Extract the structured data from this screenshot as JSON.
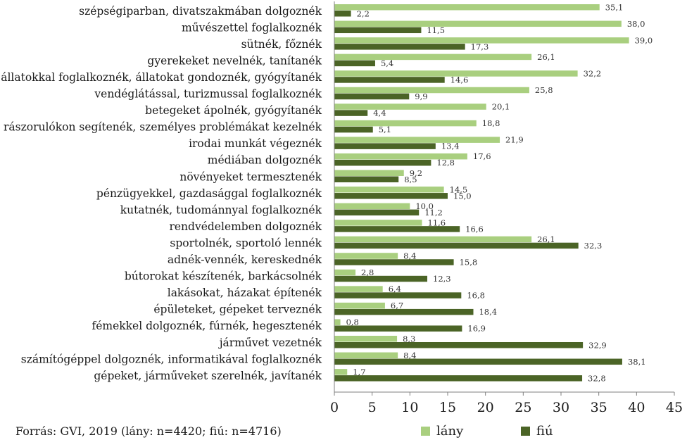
{
  "chart_data": {
    "type": "bar",
    "orientation": "horizontal",
    "categories": [
      "szépségiparban, divatszakmában dolgoznék",
      "művészettel foglalkoznék",
      "sütnék, főznék",
      "gyerekeket nevelnék, tanítanék",
      "állatokkal foglalkoznék, állatokat gondoznék, gyógyítanék",
      "vendéglátással, turizmussal foglalkoznék",
      "betegeket ápolnék, gyógyítanék",
      "rászorulókon segítenék, személyes problémákat kezelnék",
      "irodai munkát végeznék",
      "médiában dolgoznék",
      "növényeket termesztenék",
      "pénzügyekkel, gazdasággal foglalkoznék",
      "kutatnék, tudománnyal foglalkoznék",
      "rendvédelemben dolgoznék",
      "sportolnék, sportoló lennék",
      "adnék-vennék, kereskednék",
      "bútorokat készítenék, barkácsolnék",
      "lakásokat, házakat építenék",
      "épületeket, gépeket terveznék",
      "fémekkel dolgoznék, fúrnék, hegesztenék",
      "járművet vezetnék",
      "számítógéppel dolgoznék, informatikával foglalkoznék",
      "gépeket, járműveket szerelnék, javítanék"
    ],
    "series": [
      {
        "name": "lány",
        "color": "#a9cf7f",
        "values": [
          35.1,
          38.0,
          39.0,
          26.1,
          32.2,
          25.8,
          20.1,
          18.8,
          21.9,
          17.6,
          9.2,
          14.5,
          10.0,
          11.6,
          26.1,
          8.4,
          2.8,
          6.4,
          6.7,
          0.8,
          8.3,
          8.4,
          1.7
        ],
        "labels": [
          "35,1",
          "38,0",
          "39,0",
          "26,1",
          "32,2",
          "25,8",
          "20,1",
          "18,8",
          "21,9",
          "17,6",
          "9,2",
          "14,5",
          "10,0",
          "11,6",
          "26,1",
          "8,4",
          "2,8",
          "6,4",
          "6,7",
          "0,8",
          "8,3",
          "8,4",
          "1,7"
        ]
      },
      {
        "name": "fiú",
        "color": "#4b6426",
        "values": [
          2.2,
          11.5,
          17.3,
          5.4,
          14.6,
          9.9,
          4.4,
          5.1,
          13.4,
          12.8,
          8.5,
          15.0,
          11.2,
          16.6,
          32.3,
          15.8,
          12.3,
          16.8,
          18.4,
          16.9,
          32.9,
          38.1,
          32.8
        ],
        "labels": [
          "2,2",
          "11,5",
          "17,3",
          "5,4",
          "14,6",
          "9,9",
          "4,4",
          "5,1",
          "13,4",
          "12,8",
          "8,5",
          "15,0",
          "11,2",
          "16,6",
          "32,3",
          "15,8",
          "12,3",
          "16,8",
          "18,4",
          "16,9",
          "32,9",
          "38,1",
          "32,8"
        ]
      }
    ],
    "xlim": [
      0,
      45
    ],
    "xticks": [
      "0",
      "5",
      "10",
      "15",
      "20",
      "25",
      "30",
      "35",
      "40",
      "45"
    ],
    "gridlines": false,
    "legend_position": "bottom",
    "source": "Forrás: GVI, 2019 (lány: n=4420; fiú: n=4716)"
  }
}
